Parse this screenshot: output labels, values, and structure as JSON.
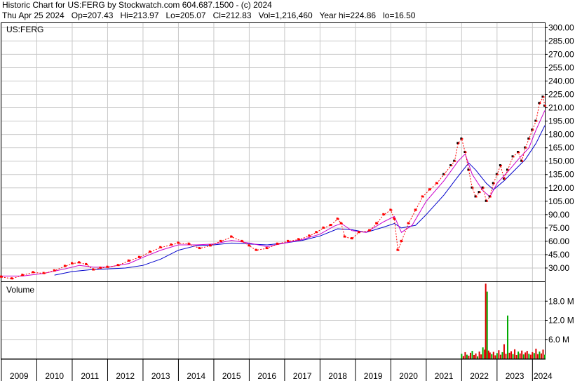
{
  "header": {
    "line1": "Historic Chart for US:FERG by Stockwatch.com 604.687.1500 - (c) 2024",
    "line2": "Thu Apr 25 2024   Op=207.43   Hi=213.97   Lo=205.07   Cl=212.83   Vol=1,216,460   Year hi=224.86   lo=16.50"
  },
  "chart_data": [
    {
      "type": "line",
      "title": "US:FERG",
      "yticks": [
        "300.00",
        "285.00",
        "270.00",
        "255.00",
        "240.00",
        "225.00",
        "210.00",
        "195.00",
        "180.00",
        "165.00",
        "150.00",
        "135.00",
        "120.00",
        "105.00",
        "90.00",
        "75.00",
        "60.00",
        "45.00",
        "30.00"
      ],
      "ylim": [
        15,
        305
      ],
      "xticks": [
        "2009",
        "2010",
        "2011",
        "2012",
        "2013",
        "2014",
        "2015",
        "2016",
        "2017",
        "2018",
        "2019",
        "2020",
        "2021",
        "2022",
        "2023",
        "2024"
      ],
      "xlim": [
        2009.0,
        2024.35
      ],
      "grid": true,
      "price": [
        [
          2009.0,
          20
        ],
        [
          2009.3,
          18
        ],
        [
          2009.6,
          22
        ],
        [
          2009.9,
          25
        ],
        [
          2010.2,
          24
        ],
        [
          2010.5,
          27
        ],
        [
          2010.8,
          32
        ],
        [
          2011.0,
          35
        ],
        [
          2011.2,
          36
        ],
        [
          2011.4,
          34
        ],
        [
          2011.6,
          28
        ],
        [
          2011.8,
          30
        ],
        [
          2012.0,
          31
        ],
        [
          2012.3,
          33
        ],
        [
          2012.6,
          38
        ],
        [
          2012.9,
          42
        ],
        [
          2013.2,
          48
        ],
        [
          2013.5,
          53
        ],
        [
          2013.8,
          56
        ],
        [
          2014.0,
          58
        ],
        [
          2014.3,
          57
        ],
        [
          2014.6,
          52
        ],
        [
          2014.9,
          55
        ],
        [
          2015.2,
          60
        ],
        [
          2015.5,
          65
        ],
        [
          2015.8,
          60
        ],
        [
          2016.0,
          55
        ],
        [
          2016.2,
          50
        ],
        [
          2016.5,
          52
        ],
        [
          2016.8,
          57
        ],
        [
          2017.1,
          60
        ],
        [
          2017.4,
          62
        ],
        [
          2017.7,
          66
        ],
        [
          2017.9,
          70
        ],
        [
          2018.1,
          75
        ],
        [
          2018.3,
          78
        ],
        [
          2018.5,
          85
        ],
        [
          2018.6,
          80
        ],
        [
          2018.7,
          65
        ],
        [
          2018.9,
          63
        ],
        [
          2019.1,
          70
        ],
        [
          2019.4,
          72
        ],
        [
          2019.6,
          80
        ],
        [
          2019.8,
          90
        ],
        [
          2020.0,
          95
        ],
        [
          2020.1,
          85
        ],
        [
          2020.2,
          50
        ],
        [
          2020.3,
          60
        ],
        [
          2020.5,
          80
        ],
        [
          2020.7,
          95
        ],
        [
          2020.9,
          110
        ],
        [
          2021.1,
          118
        ],
        [
          2021.3,
          125
        ],
        [
          2021.5,
          135
        ],
        [
          2021.7,
          145
        ],
        [
          2021.8,
          150
        ],
        [
          2021.9,
          170
        ],
        [
          2022.0,
          175
        ],
        [
          2022.1,
          160
        ],
        [
          2022.2,
          140
        ],
        [
          2022.3,
          120
        ],
        [
          2022.4,
          110
        ],
        [
          2022.5,
          115
        ],
        [
          2022.6,
          120
        ],
        [
          2022.7,
          105
        ],
        [
          2022.8,
          110
        ],
        [
          2022.9,
          125
        ],
        [
          2023.0,
          135
        ],
        [
          2023.1,
          145
        ],
        [
          2023.2,
          130
        ],
        [
          2023.3,
          140
        ],
        [
          2023.45,
          155
        ],
        [
          2023.6,
          160
        ],
        [
          2023.7,
          150
        ],
        [
          2023.8,
          165
        ],
        [
          2023.9,
          175
        ],
        [
          2024.0,
          185
        ],
        [
          2024.1,
          195
        ],
        [
          2024.2,
          215
        ],
        [
          2024.3,
          222
        ],
        [
          2024.35,
          212
        ]
      ],
      "ma_short": [
        [
          2009.0,
          21
        ],
        [
          2009.6,
          21
        ],
        [
          2010.2,
          24
        ],
        [
          2010.8,
          29
        ],
        [
          2011.2,
          33
        ],
        [
          2011.6,
          31
        ],
        [
          2012.0,
          31
        ],
        [
          2012.6,
          35
        ],
        [
          2013.0,
          42
        ],
        [
          2013.5,
          50
        ],
        [
          2014.0,
          56
        ],
        [
          2014.5,
          56
        ],
        [
          2015.0,
          57
        ],
        [
          2015.5,
          61
        ],
        [
          2016.0,
          58
        ],
        [
          2016.5,
          54
        ],
        [
          2017.0,
          58
        ],
        [
          2017.5,
          62
        ],
        [
          2018.0,
          68
        ],
        [
          2018.4,
          77
        ],
        [
          2018.6,
          80
        ],
        [
          2018.9,
          72
        ],
        [
          2019.3,
          70
        ],
        [
          2019.8,
          82
        ],
        [
          2020.1,
          88
        ],
        [
          2020.3,
          70
        ],
        [
          2020.6,
          78
        ],
        [
          2021.0,
          105
        ],
        [
          2021.5,
          128
        ],
        [
          2021.9,
          150
        ],
        [
          2022.1,
          158
        ],
        [
          2022.3,
          135
        ],
        [
          2022.6,
          117
        ],
        [
          2022.8,
          110
        ],
        [
          2023.0,
          125
        ],
        [
          2023.3,
          138
        ],
        [
          2023.6,
          152
        ],
        [
          2023.9,
          165
        ],
        [
          2024.1,
          185
        ],
        [
          2024.35,
          207
        ]
      ],
      "ma_long": [
        [
          2010.5,
          22
        ],
        [
          2011.0,
          26
        ],
        [
          2011.5,
          28
        ],
        [
          2012.0,
          29
        ],
        [
          2012.5,
          30
        ],
        [
          2013.0,
          33
        ],
        [
          2013.5,
          40
        ],
        [
          2014.0,
          50
        ],
        [
          2014.5,
          55
        ],
        [
          2015.0,
          56
        ],
        [
          2015.5,
          58
        ],
        [
          2016.0,
          57
        ],
        [
          2016.5,
          56
        ],
        [
          2017.0,
          58
        ],
        [
          2017.5,
          61
        ],
        [
          2018.0,
          66
        ],
        [
          2018.5,
          74
        ],
        [
          2018.9,
          73
        ],
        [
          2019.3,
          70
        ],
        [
          2019.8,
          76
        ],
        [
          2020.1,
          80
        ],
        [
          2020.3,
          75
        ],
        [
          2020.7,
          78
        ],
        [
          2021.0,
          90
        ],
        [
          2021.5,
          112
        ],
        [
          2021.9,
          133
        ],
        [
          2022.2,
          148
        ],
        [
          2022.4,
          140
        ],
        [
          2022.7,
          125
        ],
        [
          2022.9,
          118
        ],
        [
          2023.2,
          128
        ],
        [
          2023.5,
          140
        ],
        [
          2023.8,
          152
        ],
        [
          2024.1,
          170
        ],
        [
          2024.35,
          190
        ]
      ]
    },
    {
      "type": "bar",
      "title": "Volume",
      "yticks": [
        "18.0 M",
        "12.0 M",
        "6.0 M"
      ],
      "ylim": [
        0,
        24
      ],
      "volume": [
        [
          2022.0,
          1.5
        ],
        [
          2022.05,
          0.8
        ],
        [
          2022.1,
          2.0
        ],
        [
          2022.15,
          1.2
        ],
        [
          2022.2,
          0.9
        ],
        [
          2022.25,
          1.8
        ],
        [
          2022.3,
          2.4
        ],
        [
          2022.35,
          1.1
        ],
        [
          2022.4,
          1.6
        ],
        [
          2022.45,
          0.7
        ],
        [
          2022.5,
          2.2
        ],
        [
          2022.55,
          1.3
        ],
        [
          2022.6,
          3.5
        ],
        [
          2022.65,
          2.8
        ],
        [
          2022.68,
          23.5
        ],
        [
          2022.72,
          21.0
        ],
        [
          2022.76,
          2.5
        ],
        [
          2022.8,
          1.9
        ],
        [
          2022.85,
          1.4
        ],
        [
          2022.9,
          2.1
        ],
        [
          2022.95,
          1.0
        ],
        [
          2023.0,
          1.7
        ],
        [
          2023.05,
          2.6
        ],
        [
          2023.1,
          1.2
        ],
        [
          2023.15,
          2.0
        ],
        [
          2023.2,
          4.5
        ],
        [
          2023.25,
          1.5
        ],
        [
          2023.3,
          13.5
        ],
        [
          2023.35,
          1.8
        ],
        [
          2023.4,
          2.3
        ],
        [
          2023.45,
          1.4
        ],
        [
          2023.5,
          2.9
        ],
        [
          2023.55,
          1.1
        ],
        [
          2023.6,
          2.2
        ],
        [
          2023.65,
          1.6
        ],
        [
          2023.7,
          2.5
        ],
        [
          2023.75,
          1.3
        ],
        [
          2023.8,
          1.9
        ],
        [
          2023.85,
          2.4
        ],
        [
          2023.9,
          1.5
        ],
        [
          2023.95,
          1.2
        ],
        [
          2024.0,
          2.0
        ],
        [
          2024.05,
          1.7
        ],
        [
          2024.1,
          3.1
        ],
        [
          2024.15,
          1.4
        ],
        [
          2024.2,
          2.2
        ],
        [
          2024.25,
          1.6
        ],
        [
          2024.3,
          2.8
        ],
        [
          2024.35,
          1.2
        ]
      ]
    }
  ],
  "colors": {
    "price": "#ff0000",
    "price_dark": "#000000",
    "ma_short": "#cc00cc",
    "ma_long": "#0000cc",
    "vol_green": "#00aa00",
    "vol_red": "#dd0000"
  }
}
